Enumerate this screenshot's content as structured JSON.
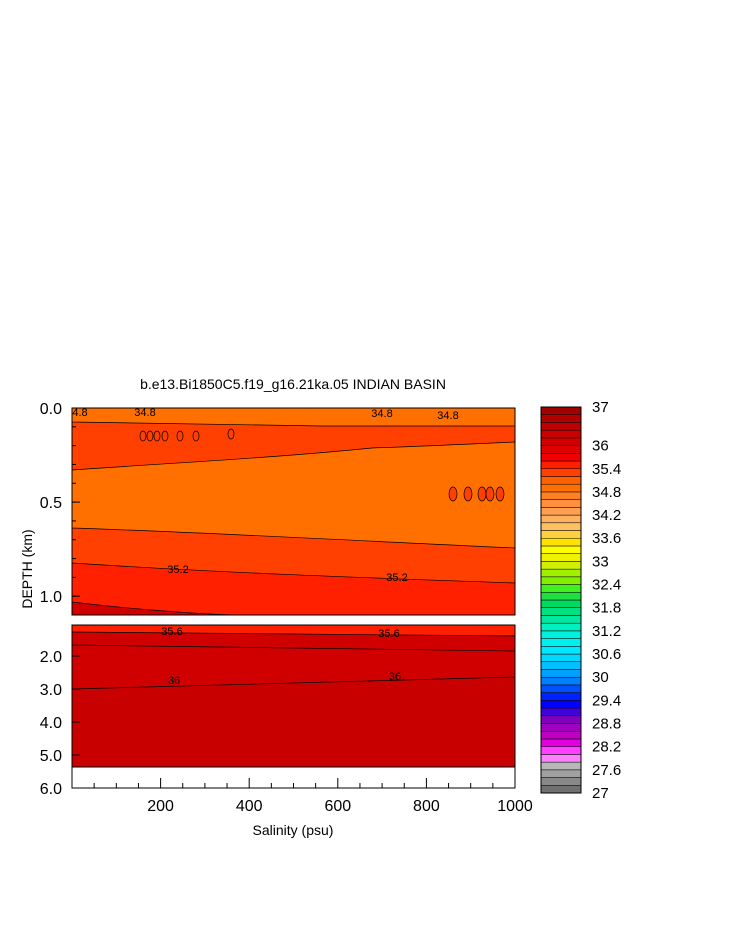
{
  "chart_data": {
    "type": "heatmap",
    "title": "b.e13.Bi1850C5.f19_g16.21ka.05 INDIAN BASIN",
    "xlabel": "Salinity (psu)",
    "ylabel": "DEPTH (km)",
    "xlim": [
      0,
      1000
    ],
    "x_ticks": [
      200,
      400,
      600,
      800,
      1000
    ],
    "x_tick_labels": [
      "200",
      "400",
      "600",
      "800",
      "1000"
    ],
    "upper_panel": {
      "ylim": [
        0.0,
        1.1
      ],
      "y_ticks": [
        0.0,
        0.5,
        1.0
      ],
      "y_tick_labels": [
        "0.0",
        "0.5",
        "1.0"
      ]
    },
    "lower_panel": {
      "ylim": [
        1.1,
        6.0
      ],
      "y_ticks": [
        2.0,
        3.0,
        4.0,
        5.0,
        6.0
      ],
      "y_tick_labels": [
        "2.0",
        "3.0",
        "4.0",
        "5.0",
        "6.0"
      ],
      "y_tick_positions": [
        1.5,
        2.5,
        3.5,
        4.5,
        5.5
      ]
    },
    "contour_labels": [
      {
        "text": "4.8",
        "x": 15,
        "y": 0.03
      },
      {
        "text": "34.8",
        "x": 160,
        "y": 0.03
      },
      {
        "text": "34.8",
        "x": 710,
        "y": 0.03
      },
      {
        "text": "34.8",
        "x": 860,
        "y": 0.05
      },
      {
        "text": "35.2",
        "x": 240,
        "y": 0.88
      },
      {
        "text": "35.2",
        "x": 730,
        "y": 0.91
      },
      {
        "text": "35.6",
        "x": 225,
        "y": 1.15
      },
      {
        "text": "35.6",
        "x": 720,
        "y": 1.16
      },
      {
        "text": "36",
        "x": 230,
        "y": 2.18
      },
      {
        "text": "36",
        "x": 720,
        "y": 2.06
      }
    ],
    "colorbar": {
      "levels": [
        27,
        27.2,
        27.4,
        27.6,
        27.8,
        28,
        28.2,
        28.4,
        28.6,
        28.8,
        29,
        29.2,
        29.4,
        29.6,
        29.8,
        30,
        30.2,
        30.4,
        30.6,
        30.8,
        31,
        31.2,
        31.4,
        31.6,
        31.8,
        32,
        32.2,
        32.4,
        32.6,
        32.8,
        33,
        33.2,
        33.4,
        33.6,
        33.8,
        34,
        34.2,
        34.4,
        34.6,
        34.8,
        35,
        35.2,
        35.4,
        35.6,
        35.8,
        36,
        36.2,
        36.4,
        36.6,
        36.8,
        37
      ],
      "colors": [
        "#707070",
        "#888888",
        "#a0a0a0",
        "#b8b8b8",
        "#ff80ff",
        "#ff40ff",
        "#e000e0",
        "#c000c0",
        "#a000c0",
        "#8000c0",
        "#4000e0",
        "#0000ff",
        "#0020ff",
        "#0050ff",
        "#0080ff",
        "#00a0ff",
        "#00c0ff",
        "#00d8ff",
        "#00e8ff",
        "#00f0f0",
        "#00f0e0",
        "#00f0c0",
        "#00e8a0",
        "#00e080",
        "#00d860",
        "#20e040",
        "#40f020",
        "#80f000",
        "#a0f000",
        "#d0f000",
        "#f0f000",
        "#ffff00",
        "#ffe000",
        "#ffd040",
        "#ffc060",
        "#ffb060",
        "#ffa050",
        "#ff9040",
        "#ff8020",
        "#ff7000",
        "#ff6000",
        "#ff4000",
        "#ff2000",
        "#f00000",
        "#e00000",
        "#d00000",
        "#c80000",
        "#c00000",
        "#b00000",
        "#a00000"
      ],
      "tick_labels": [
        "27",
        "27.6",
        "28.2",
        "28.8",
        "29.4",
        "30",
        "30.6",
        "31.2",
        "31.8",
        "32.4",
        "33",
        "33.6",
        "34.2",
        "34.8",
        "35.4",
        "36",
        "37"
      ],
      "tick_values": [
        27,
        27.6,
        28.2,
        28.8,
        29.4,
        30,
        30.6,
        31.2,
        31.8,
        32.4,
        33,
        33.6,
        34.2,
        34.8,
        35.4,
        36,
        37
      ]
    },
    "fill_colors": {
      "surface": "#ff7000",
      "upper_layer": "#ff4000",
      "middle_layer": "#ff7000",
      "lower_layer": "#ff4000",
      "deep_upper": "#ff2000",
      "deep": "#d00000",
      "deepest": "#c80000",
      "missing": "#ffffff"
    },
    "grid": false,
    "legend": "right"
  }
}
